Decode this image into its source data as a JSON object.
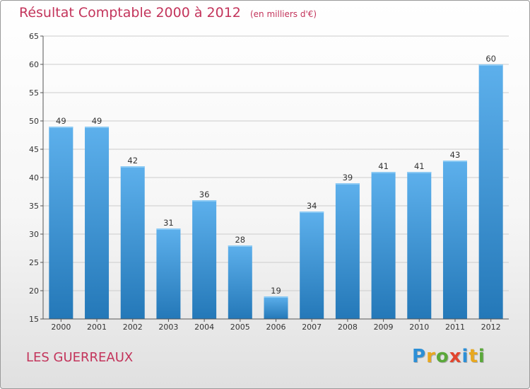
{
  "chart_data": {
    "type": "bar",
    "title": "Résultat Comptable 2000 à 2012",
    "subtitle": "(en milliers d'€)",
    "categories": [
      "2000",
      "2001",
      "2002",
      "2003",
      "2004",
      "2005",
      "2006",
      "2007",
      "2008",
      "2009",
      "2010",
      "2011",
      "2012"
    ],
    "values": [
      49,
      49,
      42,
      31,
      36,
      28,
      19,
      34,
      39,
      41,
      41,
      43,
      60
    ],
    "ylim": [
      15,
      65
    ],
    "yticks": [
      15,
      20,
      25,
      30,
      35,
      40,
      45,
      50,
      55,
      60,
      65
    ],
    "xlabel": "",
    "ylabel": "",
    "grid": true,
    "bar_color": "#3f98db",
    "bar_color_light": "#5db0ec",
    "bar_color_dark": "#2478b8"
  },
  "footer": {
    "commune": "LES GUERREAUX",
    "brand": "Proxiti",
    "brand_letters": [
      "P",
      "r",
      "o",
      "x",
      "i",
      "t",
      "i"
    ],
    "brand_colors": [
      "#2c8fd6",
      "#e8a820",
      "#5aa83a",
      "#e2452e",
      "#2c8fd6",
      "#e8a820",
      "#5aa83a"
    ]
  },
  "colors": {
    "title": "#c3345b",
    "axis": "#555555",
    "grid": "#cccccc"
  }
}
